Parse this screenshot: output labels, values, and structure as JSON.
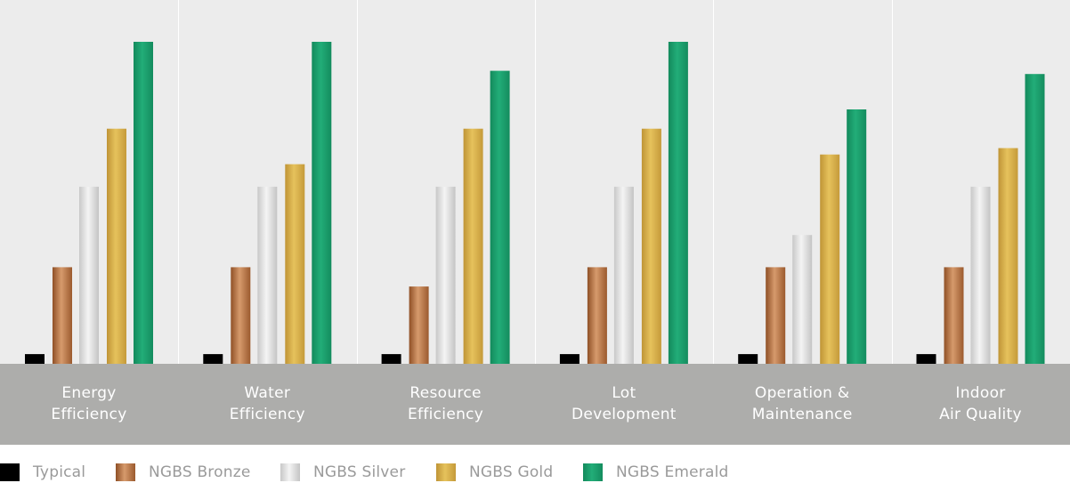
{
  "chart_data": {
    "type": "bar",
    "title": "",
    "xlabel": "",
    "ylabel": "",
    "ylim": [
      0,
      100
    ],
    "grid": false,
    "legend_position": "bottom",
    "categories": [
      [
        "Energy",
        "Efficiency"
      ],
      [
        "Water",
        "Efficiency"
      ],
      [
        "Resource",
        "Efficiency"
      ],
      [
        "Lot",
        "Development"
      ],
      [
        "Operation &",
        "Maintenance"
      ],
      [
        "Indoor",
        "Air Quality"
      ]
    ],
    "series": [
      {
        "name": "Typical",
        "color": "#000000",
        "values": [
          3,
          3,
          3,
          3,
          3,
          3
        ]
      },
      {
        "name": "NGBS Bronze",
        "color": "#b86f3f",
        "values": [
          30,
          30,
          24,
          30,
          30,
          30
        ]
      },
      {
        "name": "NGBS Silver",
        "color": "#d6d6d6",
        "values": [
          55,
          55,
          55,
          55,
          40,
          55
        ]
      },
      {
        "name": "NGBS Gold",
        "color": "#d4ac45",
        "values": [
          73,
          62,
          73,
          73,
          65,
          67
        ]
      },
      {
        "name": "NGBS Emerald",
        "color": "#1a9a6a",
        "values": [
          100,
          100,
          91,
          100,
          79,
          90
        ]
      }
    ]
  }
}
